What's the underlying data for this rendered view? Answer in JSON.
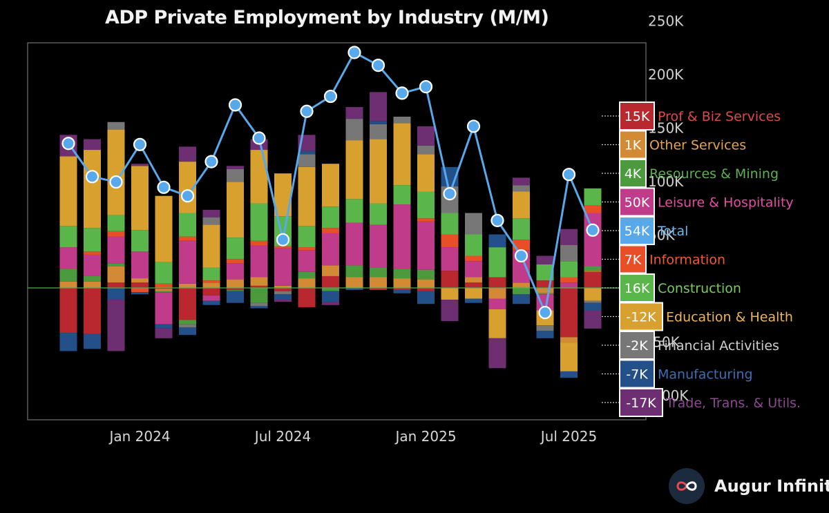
{
  "chart_data": {
    "type": "bar",
    "subtype": "stacked-bar-with-line",
    "title": "ADP Private Employment by Industry (M/M)",
    "y_axis": {
      "position": "right",
      "ylim": [
        -100000,
        250000
      ],
      "ticks": [
        {
          "value": 250000,
          "label": "250K"
        },
        {
          "value": 200000,
          "label": "200K"
        },
        {
          "value": 150000,
          "label": "150K"
        },
        {
          "value": 100000,
          "label": "100K"
        },
        {
          "value": 50000,
          "label": "50K"
        },
        {
          "value": -50000,
          "label": "-50K"
        },
        {
          "value": -100000,
          "label": "-100K"
        }
      ]
    },
    "x_axis": {
      "ticks": [
        {
          "index": 3,
          "label": "Jan 2024"
        },
        {
          "index": 9,
          "label": "Jul 2024"
        },
        {
          "index": 15,
          "label": "Jan 2025"
        },
        {
          "index": 21,
          "label": "Jul 2025"
        }
      ]
    },
    "months": [
      "Oct 2023",
      "Nov 2023",
      "Dec 2023",
      "Jan 2024",
      "Feb 2024",
      "Mar 2024",
      "Apr 2024",
      "May 2024",
      "Jun 2024",
      "Jul 2024",
      "Aug 2024",
      "Sep 2024",
      "Oct 2024",
      "Nov 2024",
      "Dec 2024",
      "Jan 2025",
      "Feb 2025",
      "Mar 2025",
      "Apr 2025",
      "May 2025",
      "Jun 2025",
      "Jul 2025",
      "Aug 2025"
    ],
    "series": [
      {
        "name": "Prof & Biz Services",
        "color": "#b8282e",
        "values": [
          -42000,
          -43000,
          5000,
          5000,
          -1000,
          -30000,
          -7000,
          -2000,
          2000,
          -3000,
          -18000,
          11000,
          0,
          -2000,
          -2000,
          -3000,
          16000,
          5000,
          10000,
          0,
          7000,
          -46000,
          15000
        ]
      },
      {
        "name": "Other Services",
        "color": "#d28a35",
        "values": [
          6000,
          6000,
          15000,
          4000,
          -2000,
          4000,
          5000,
          8000,
          8000,
          2000,
          9000,
          10000,
          10000,
          10000,
          9000,
          8000,
          0,
          5000,
          -10000,
          5000,
          -5000,
          -5000,
          1000
        ]
      },
      {
        "name": "Resources & Mining",
        "color": "#4c9a3e",
        "values": [
          12000,
          5000,
          3000,
          0,
          -1000,
          -4000,
          0,
          -1000,
          -14000,
          0,
          6000,
          -3000,
          11000,
          9000,
          9000,
          9000,
          0,
          0,
          0,
          -6000,
          -1000,
          0,
          4000
        ]
      },
      {
        "name": "Leisure & Hospitality",
        "color": "#c03c8a",
        "values": [
          20000,
          20000,
          25000,
          25000,
          -30000,
          40000,
          -5000,
          15000,
          30000,
          35000,
          20000,
          30000,
          40000,
          40000,
          60000,
          45000,
          22000,
          15000,
          -10000,
          30000,
          -15000,
          5000,
          50000
        ]
      },
      {
        "name": "Information",
        "color": "#e94f26",
        "values": [
          0,
          3000,
          5000,
          -4000,
          4000,
          4000,
          2000,
          4000,
          4000,
          2000,
          3000,
          5000,
          0,
          0,
          0,
          3000,
          12000,
          5000,
          0,
          10000,
          0,
          5000,
          7000
        ]
      },
      {
        "name": "Construction",
        "color": "#5ab54a",
        "values": [
          20000,
          22000,
          15000,
          20000,
          20000,
          22000,
          12000,
          20000,
          35000,
          28000,
          20000,
          20000,
          22000,
          20000,
          18000,
          25000,
          20000,
          20000,
          28000,
          20000,
          15000,
          15000,
          16000
        ]
      },
      {
        "name": "Education & Health",
        "color": "#d8a02e",
        "values": [
          65000,
          73000,
          80000,
          60000,
          62000,
          48000,
          40000,
          52000,
          50000,
          40000,
          55000,
          40000,
          55000,
          60000,
          58000,
          35000,
          -11000,
          -10000,
          -27000,
          25000,
          -14000,
          -27000,
          -12000
        ]
      },
      {
        "name": "Financial Activities",
        "color": "#777777",
        "values": [
          0,
          0,
          7000,
          0,
          0,
          -3000,
          7000,
          12000,
          -3000,
          -3000,
          12000,
          0,
          20000,
          14000,
          6000,
          8000,
          25000,
          20000,
          0,
          6000,
          -5000,
          15000,
          -2000
        ]
      },
      {
        "name": "Manufacturing",
        "color": "#24508a",
        "values": [
          -17000,
          -14000,
          -11000,
          -2000,
          -4000,
          -7000,
          -4000,
          -11000,
          -2000,
          -5000,
          3000,
          -10000,
          -2000,
          3000,
          -3000,
          -12000,
          18000,
          -4000,
          12000,
          -9000,
          -7000,
          -6000,
          -7000
        ]
      },
      {
        "name": "Trade, Trans. & Utils.",
        "color": "#6e2f72",
        "values": [
          20000,
          10000,
          -48000,
          2000,
          -9000,
          14000,
          7000,
          3000,
          10000,
          -2000,
          15000,
          -3000,
          11000,
          27000,
          0,
          18000,
          -20000,
          0,
          -28000,
          7000,
          8000,
          15000,
          -17000
        ]
      }
    ],
    "total": {
      "name": "Total",
      "color": "#58a8ec",
      "values": [
        135000,
        104000,
        99000,
        134000,
        94000,
        86000,
        118000,
        171000,
        140000,
        45000,
        165000,
        179000,
        220000,
        208000,
        182000,
        188000,
        88000,
        151000,
        63000,
        30000,
        -23000,
        106000,
        54000
      ]
    },
    "legend_labels": [
      {
        "value_label": "15K",
        "name": "Prof & Biz Services",
        "color": "#b8282e",
        "text_color": "#dd4a48"
      },
      {
        "value_label": "1K",
        "name": "Other Services",
        "color": "#d28a35",
        "text_color": "#e9a34e"
      },
      {
        "value_label": "4K",
        "name": "Resources & Mining",
        "color": "#4c9a3e",
        "text_color": "#5fb053"
      },
      {
        "value_label": "50K",
        "name": "Leisure & Hospitality",
        "color": "#c03c8a",
        "text_color": "#e24ea3"
      },
      {
        "value_label": "54K",
        "name": "Total",
        "color": "#58a8ec",
        "text_color": "#6cb6f0"
      },
      {
        "value_label": "7K",
        "name": "Information",
        "color": "#e94f26",
        "text_color": "#f15a2e"
      },
      {
        "value_label": "16K",
        "name": "Construction",
        "color": "#5ab54a",
        "text_color": "#78cd5c"
      },
      {
        "value_label": "-12K",
        "name": "Education & Health",
        "color": "#d8a02e",
        "text_color": "#f0b555"
      },
      {
        "value_label": "-2K",
        "name": "Financial Activities",
        "color": "#777777",
        "text_color": "#cfcfcf"
      },
      {
        "value_label": "-7K",
        "name": "Manufacturing",
        "color": "#24508a",
        "text_color": "#3d6fb2"
      },
      {
        "value_label": "-17K",
        "name": "Trade, Trans. & Utils.",
        "color": "#6e2f72",
        "text_color": "#8b4a90"
      }
    ]
  },
  "brand": {
    "name": "Augur Infinity",
    "logo_icon": "infinity-icon"
  }
}
